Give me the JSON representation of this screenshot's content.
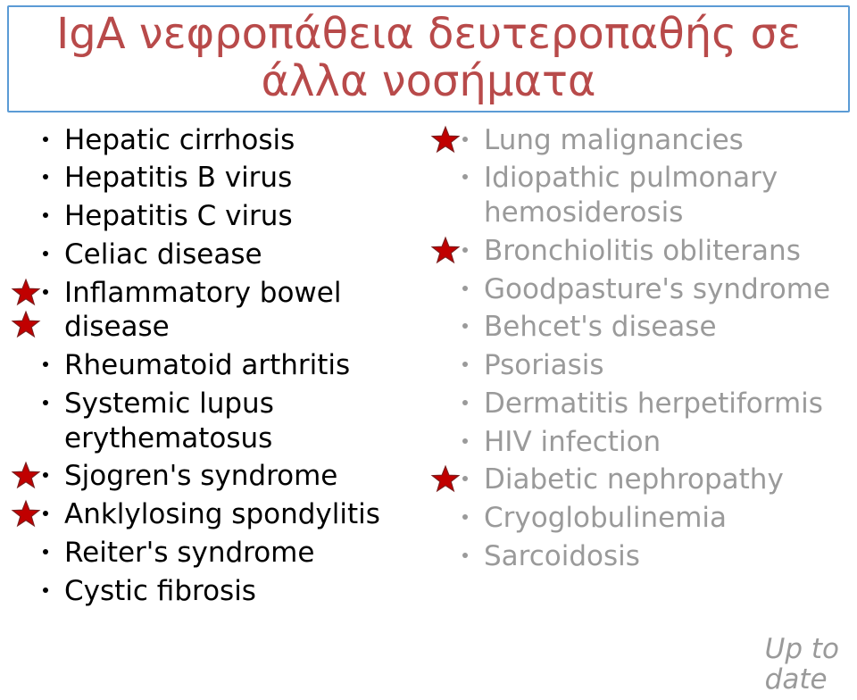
{
  "title": {
    "line1": "IgA νεφροπάθεια δευτεροπαθής σε",
    "line2": "άλλα νοσήματα",
    "color": "#b84a4a",
    "border_color": "#5b9bd5",
    "fontsize": 48
  },
  "body_fontsize": 31,
  "normal_color": "#000000",
  "dim_color": "#9a9a9a",
  "star": {
    "fill": "#c00000",
    "stroke": "#7a1f1f",
    "size": 34
  },
  "left": [
    {
      "text": "Hepatic cirrhosis",
      "dim": false,
      "star": false
    },
    {
      "text": "Hepatitis B virus",
      "dim": false,
      "star": false
    },
    {
      "text": "Hepatitis C virus",
      "dim": false,
      "star": false
    },
    {
      "text": "Celiac disease",
      "dim": false,
      "star": false
    },
    {
      "text": "Inflammatory bowel disease",
      "dim": false,
      "star": true,
      "star2": true
    },
    {
      "text": "Rheumatoid arthritis",
      "dim": false,
      "star": false
    },
    {
      "text": "Systemic lupus erythematosus",
      "dim": false,
      "star": false
    },
    {
      "text": "Sjogren's syndrome",
      "dim": false,
      "star": true
    },
    {
      "text": "Anklylosing spondylitis",
      "dim": false,
      "star": true
    },
    {
      "text": "Reiter's syndrome",
      "dim": false,
      "star": false
    },
    {
      "text": "Cystic fibrosis",
      "dim": false,
      "star": false
    }
  ],
  "right": [
    {
      "text": "Lung malignancies",
      "dim": true,
      "star": true
    },
    {
      "text": "Idiopathic pulmonary hemosiderosis",
      "dim": true,
      "star": false
    },
    {
      "text": "Bronchiolitis obliterans",
      "dim": true,
      "star": true
    },
    {
      "text": "Goodpasture's syndrome",
      "dim": true,
      "star": false
    },
    {
      "text": "Behcet's disease",
      "dim": true,
      "star": false
    },
    {
      "text": "Psoriasis",
      "dim": true,
      "star": false
    },
    {
      "text": "Dermatitis herpetiformis",
      "dim": true,
      "star": false
    },
    {
      "text": "HIV infection",
      "dim": true,
      "star": false
    },
    {
      "text": "Diabetic nephropathy",
      "dim": true,
      "star": true
    },
    {
      "text": "Cryoglobulinemia",
      "dim": true,
      "star": false
    },
    {
      "text": "Sarcoidosis",
      "dim": true,
      "star": false
    }
  ],
  "footer": {
    "line1": "Up to",
    "line2": "date"
  }
}
